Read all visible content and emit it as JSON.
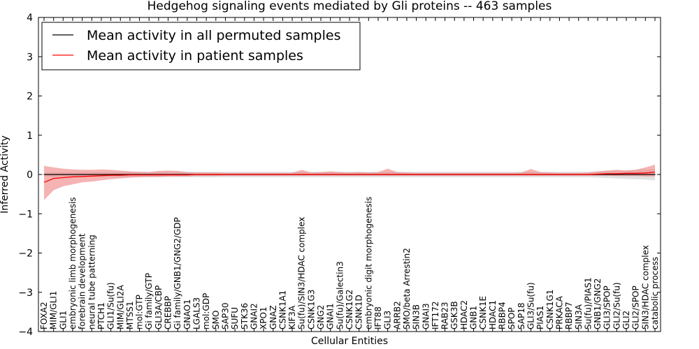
{
  "chart_data": {
    "type": "line",
    "title": "Hedgehog signaling events mediated by Gli proteins -- 463 samples",
    "xlabel": "Cellular Entities",
    "ylabel": "Inferred Activity",
    "ylim": [
      -4,
      4
    ],
    "yticks": [
      -4,
      -3,
      -2,
      -1,
      0,
      1,
      2,
      3,
      4
    ],
    "ytick_labels": [
      "−4",
      "−3",
      "−2",
      "−1",
      "0",
      "1",
      "2",
      "3",
      "4"
    ],
    "legend_position": "top-left",
    "categories": [
      "FOXA2",
      "MIM/GLI1",
      "GLI1",
      "embryonic limb morphogenesis",
      "forebrain development",
      "neural tube patterning",
      "PTCH1",
      "GLI1/Su(fu)",
      "MIM/GLI2A",
      "MTSS1",
      "mol:GTP",
      "Gi family/GTP",
      "GLI3A/CBP",
      "CREBBP",
      "Gi family/GNB1/GNG2/GDP",
      "GNAO1",
      "LGALS3",
      "mol:GDP",
      "SMO",
      "SAP30",
      "SUFU",
      "STK36",
      "GNAI2",
      "XPO1",
      "GNAZ",
      "CSNK1A1",
      "KIF3A",
      "Su(fu)/SIN3/HDAC complex",
      "CSNK1G3",
      "GNG2",
      "GNAI1",
      "Su(fu)/Galectin3",
      "CSNK1G2",
      "CSNK1D",
      "embryonic digit morphogenesis",
      "IFT88",
      "GLI3",
      "ARRB2",
      "SMO/beta Arrestin2",
      "SIN3B",
      "GNAI3",
      "IFT172",
      "RAB23",
      "GSK3B",
      "HDAC2",
      "GNB1",
      "CSNK1E",
      "HDAC1",
      "RBBP4",
      "SPOP",
      "SAP18",
      "GLI3/Su(fu)",
      "PIAS1",
      "CSNK1G1",
      "PRKACA",
      "RBBP7",
      "SIN3A",
      "Su(fu)/PIAS1",
      "GNB1/GNG2",
      "GLI3/SPOP",
      "GLI2/Su(fu)",
      "GLI2",
      "GLI2/SPOP",
      "SIN3/HDAC complex",
      "catabolic process"
    ],
    "series": [
      {
        "name": "Mean activity in all permuted samples",
        "color": "#000000",
        "band_color": "#c8c8c8",
        "values": [
          0,
          0,
          0,
          0,
          0,
          0,
          0,
          0,
          0,
          0,
          0,
          0,
          0,
          0,
          0,
          0,
          0,
          0,
          0,
          0,
          0,
          0,
          0,
          0,
          0,
          0,
          0,
          0,
          0,
          0,
          0,
          0,
          0,
          0,
          0,
          0,
          0,
          0,
          0,
          0,
          0,
          0,
          0,
          0,
          0,
          0,
          0,
          0,
          0,
          0,
          0,
          0,
          0,
          0,
          0,
          0,
          0,
          0,
          0,
          0,
          0,
          0,
          0,
          0,
          0
        ],
        "lower": [
          -0.05,
          -0.06,
          -0.06,
          -0.06,
          -0.06,
          -0.06,
          -0.06,
          -0.06,
          -0.07,
          -0.07,
          -0.07,
          -0.07,
          -0.07,
          -0.07,
          -0.07,
          -0.07,
          -0.07,
          -0.07,
          -0.07,
          -0.07,
          -0.07,
          -0.07,
          -0.07,
          -0.07,
          -0.07,
          -0.07,
          -0.07,
          -0.07,
          -0.07,
          -0.07,
          -0.07,
          -0.07,
          -0.07,
          -0.07,
          -0.07,
          -0.07,
          -0.07,
          -0.07,
          -0.07,
          -0.07,
          -0.07,
          -0.07,
          -0.07,
          -0.07,
          -0.07,
          -0.07,
          -0.07,
          -0.07,
          -0.07,
          -0.07,
          -0.07,
          -0.07,
          -0.07,
          -0.07,
          -0.07,
          -0.07,
          -0.07,
          -0.07,
          -0.08,
          -0.09,
          -0.1,
          -0.11,
          -0.12,
          -0.13,
          -0.15
        ],
        "upper": [
          0.05,
          0.06,
          0.06,
          0.06,
          0.06,
          0.06,
          0.06,
          0.06,
          0.07,
          0.07,
          0.07,
          0.07,
          0.07,
          0.07,
          0.07,
          0.07,
          0.07,
          0.07,
          0.07,
          0.07,
          0.07,
          0.07,
          0.07,
          0.07,
          0.07,
          0.07,
          0.07,
          0.07,
          0.07,
          0.07,
          0.07,
          0.07,
          0.07,
          0.07,
          0.07,
          0.07,
          0.07,
          0.07,
          0.07,
          0.07,
          0.07,
          0.07,
          0.07,
          0.07,
          0.07,
          0.07,
          0.07,
          0.07,
          0.07,
          0.07,
          0.07,
          0.07,
          0.07,
          0.07,
          0.07,
          0.07,
          0.07,
          0.07,
          0.08,
          0.09,
          0.1,
          0.11,
          0.12,
          0.13,
          0.15
        ]
      },
      {
        "name": "Mean activity in patient samples",
        "color": "#ff0000",
        "band_color": "#f08080",
        "values": [
          -0.2,
          -0.1,
          -0.08,
          -0.06,
          -0.05,
          -0.04,
          -0.03,
          -0.02,
          -0.02,
          -0.01,
          -0.01,
          -0.01,
          -0.01,
          -0.01,
          -0.01,
          -0.01,
          0,
          0,
          0,
          0,
          0,
          0,
          0,
          0,
          0,
          0,
          0,
          0,
          0,
          0,
          0,
          0,
          0,
          0,
          0,
          0,
          0,
          0,
          0,
          0,
          0,
          0,
          0,
          0,
          0,
          0,
          0,
          0,
          0,
          0,
          0,
          0,
          0,
          0,
          0,
          0,
          0,
          0,
          0.01,
          0.02,
          0.02,
          0.03,
          0.03,
          0.04,
          0.06
        ],
        "lower": [
          -0.65,
          -0.4,
          -0.3,
          -0.25,
          -0.2,
          -0.18,
          -0.15,
          -0.12,
          -0.1,
          -0.08,
          -0.07,
          -0.06,
          -0.06,
          -0.05,
          -0.05,
          -0.05,
          -0.04,
          -0.04,
          -0.04,
          -0.03,
          -0.03,
          -0.03,
          -0.03,
          -0.03,
          -0.03,
          -0.03,
          -0.03,
          -0.03,
          -0.03,
          -0.03,
          -0.03,
          -0.03,
          -0.03,
          -0.03,
          -0.03,
          -0.03,
          -0.03,
          -0.03,
          -0.03,
          -0.03,
          -0.03,
          -0.03,
          -0.03,
          -0.03,
          -0.03,
          -0.03,
          -0.03,
          -0.03,
          -0.03,
          -0.03,
          -0.03,
          -0.03,
          -0.03,
          -0.03,
          -0.03,
          -0.03,
          -0.03,
          -0.03,
          -0.03,
          -0.03,
          -0.04,
          -0.04,
          -0.04,
          -0.05,
          -0.05
        ],
        "upper": [
          0.22,
          0.18,
          0.15,
          0.13,
          0.12,
          0.12,
          0.13,
          0.12,
          0.1,
          0.08,
          0.07,
          0.06,
          0.09,
          0.1,
          0.09,
          0.06,
          0.05,
          0.05,
          0.05,
          0.04,
          0.04,
          0.04,
          0.04,
          0.04,
          0.04,
          0.04,
          0.04,
          0.12,
          0.05,
          0.06,
          0.08,
          0.06,
          0.05,
          0.06,
          0.05,
          0.06,
          0.15,
          0.06,
          0.05,
          0.04,
          0.04,
          0.04,
          0.04,
          0.04,
          0.04,
          0.04,
          0.04,
          0.04,
          0.04,
          0.04,
          0.05,
          0.14,
          0.06,
          0.05,
          0.04,
          0.04,
          0.04,
          0.05,
          0.08,
          0.1,
          0.12,
          0.1,
          0.12,
          0.18,
          0.25
        ]
      }
    ]
  }
}
